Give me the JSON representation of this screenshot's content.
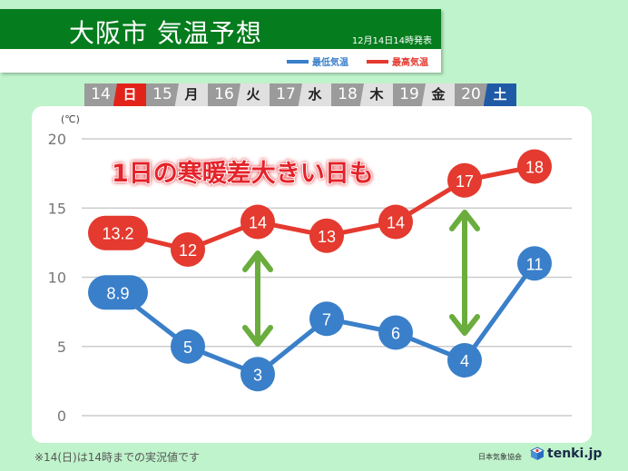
{
  "header": {
    "title": "大阪市 気温予想",
    "issued": "12月14日14時発表"
  },
  "legend": [
    {
      "label": "最低気温",
      "color": "#3a7fc9"
    },
    {
      "label": "最高気温",
      "color": "#e43a2f"
    }
  ],
  "days": [
    {
      "date": "14",
      "weekday": "日",
      "wk_bg": "#e2231a",
      "wk_fg": "#ffffff"
    },
    {
      "date": "15",
      "weekday": "月",
      "wk_bg": "#e0e0e0",
      "wk_fg": "#222222"
    },
    {
      "date": "16",
      "weekday": "火",
      "wk_bg": "#e0e0e0",
      "wk_fg": "#222222"
    },
    {
      "date": "17",
      "weekday": "水",
      "wk_bg": "#e0e0e0",
      "wk_fg": "#222222"
    },
    {
      "date": "18",
      "weekday": "木",
      "wk_bg": "#e0e0e0",
      "wk_fg": "#222222"
    },
    {
      "date": "19",
      "weekday": "金",
      "wk_bg": "#e0e0e0",
      "wk_fg": "#222222"
    },
    {
      "date": "20",
      "weekday": "土",
      "wk_bg": "#1f5aa6",
      "wk_fg": "#ffffff"
    }
  ],
  "annotation": "1日の寒暖差大きい日も",
  "footer": {
    "note": "※14(日)は14時までの実況値です",
    "credit": "日本気象協会",
    "logo": "tenki.jp"
  },
  "chart_data": {
    "type": "line",
    "title": "大阪市 気温予想",
    "ylabel": "(℃)",
    "ylim": [
      0,
      20
    ],
    "yticks": [
      0,
      5,
      10,
      15,
      20
    ],
    "grid": true,
    "categories": [
      "14 日",
      "15 月",
      "16 火",
      "17 水",
      "18 木",
      "19 金",
      "20 土"
    ],
    "series": [
      {
        "name": "最高気温",
        "color": "#e43a2f",
        "values": [
          13.2,
          12,
          14,
          13,
          14,
          17,
          18
        ],
        "labels": [
          "13.2",
          "12",
          "14",
          "13",
          "14",
          "17",
          "18"
        ]
      },
      {
        "name": "最低気温",
        "color": "#3a7fc9",
        "values": [
          8.9,
          5,
          3,
          7,
          6,
          4,
          11
        ],
        "labels": [
          "8.9",
          "5",
          "3",
          "7",
          "6",
          "4",
          "11"
        ]
      }
    ],
    "arrows": [
      {
        "day": "16 火"
      },
      {
        "day": "19 金"
      }
    ],
    "arrow_color": "#6aad3d"
  }
}
